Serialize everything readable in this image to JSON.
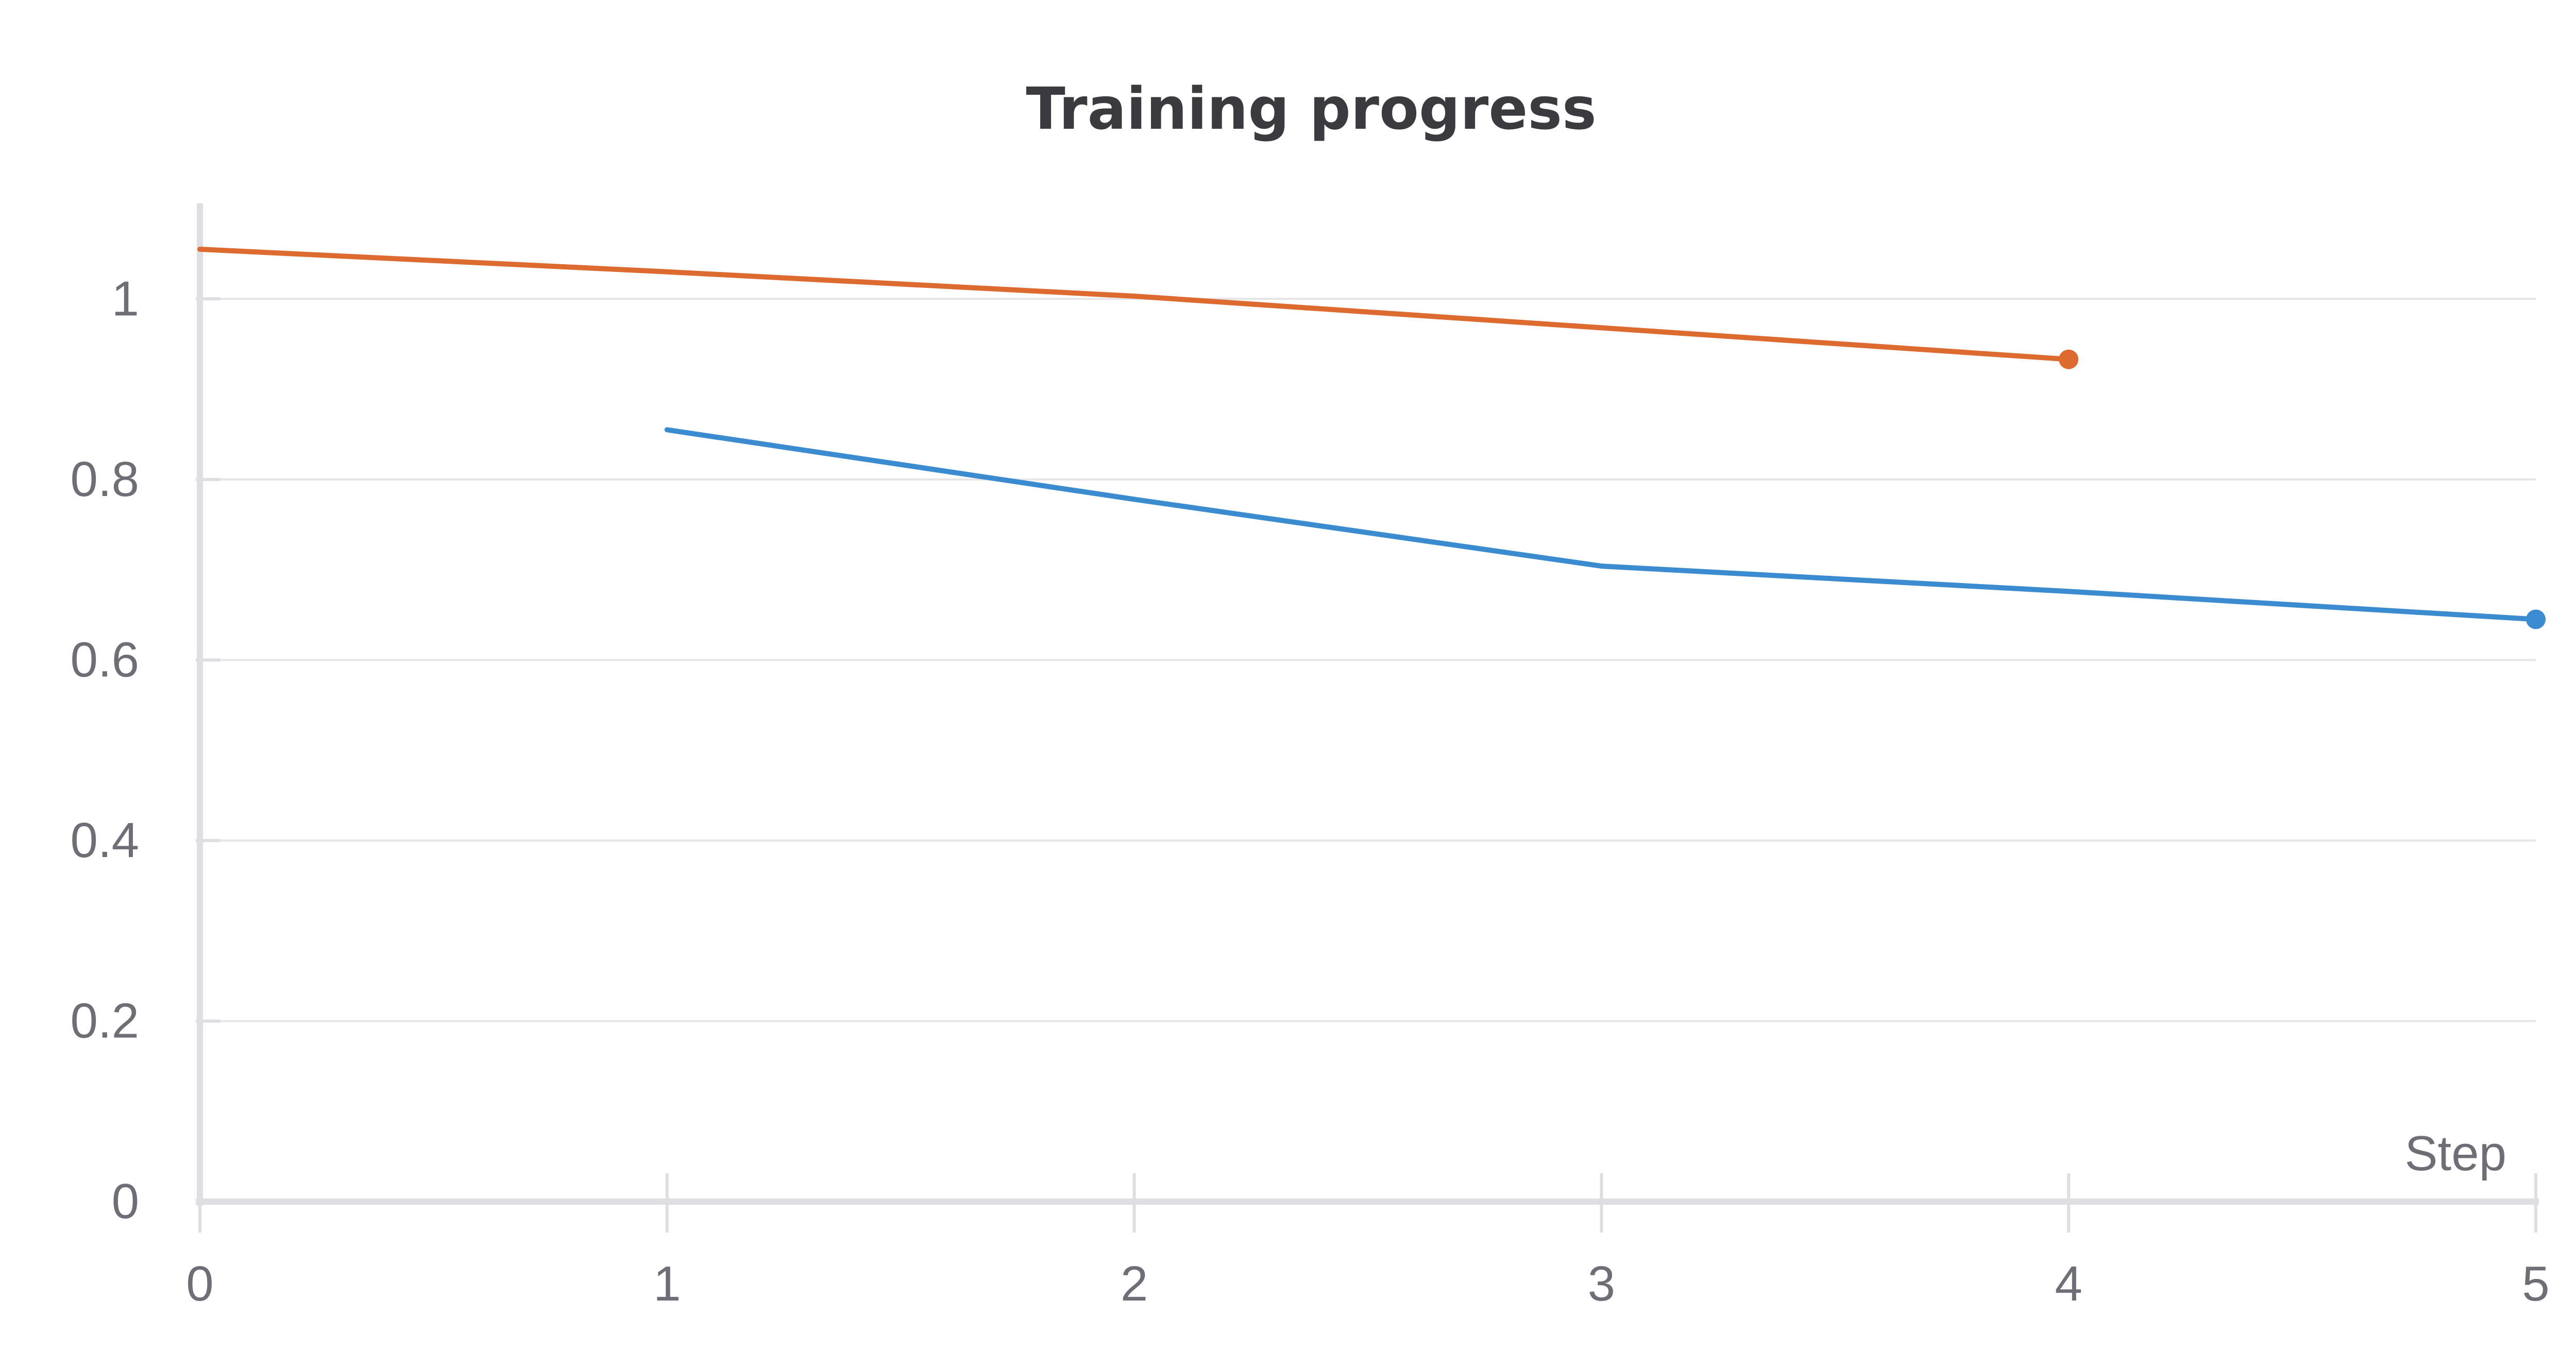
{
  "chart_data": {
    "type": "line",
    "title": "Training progress",
    "xlabel": "Step",
    "ylabel": "",
    "xlim": [
      0,
      5
    ],
    "ylim": [
      0,
      1.1
    ],
    "x_ticks": [
      "0",
      "1",
      "2",
      "3",
      "4",
      "5"
    ],
    "y_ticks": [
      "0",
      "0.2",
      "0.4",
      "0.6",
      "0.8",
      "1"
    ],
    "grid": true,
    "legend": "none",
    "series": [
      {
        "color": "#dd6a2e",
        "x": [
          0,
          1,
          2,
          3,
          4
        ],
        "y": [
          1.055,
          1.03,
          1.003,
          0.968,
          0.933
        ]
      },
      {
        "color": "#3b8bd0",
        "x": [
          1,
          2,
          3,
          4,
          5
        ],
        "y": [
          0.855,
          0.778,
          0.704,
          0.676,
          0.645
        ]
      }
    ]
  }
}
